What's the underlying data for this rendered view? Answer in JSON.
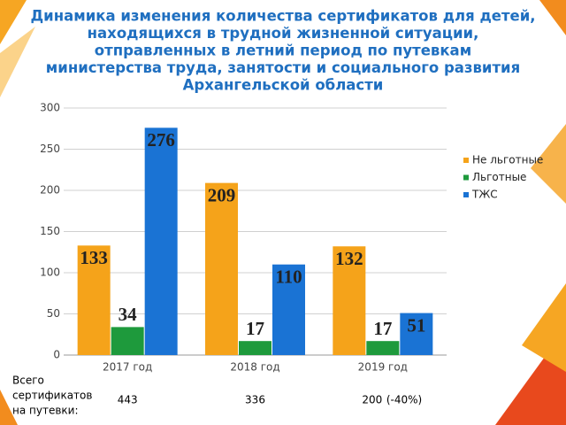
{
  "chart_data": {
    "type": "bar",
    "title": [
      "Динамика изменения количества сертификатов для детей,",
      "находящихся в трудной жизненной ситуации,",
      "отправленных в летний период по путевкам",
      "министерства труда, занятости и социального развития",
      "Архангельской области"
    ],
    "categories": [
      "2017 год",
      "2018 год",
      "2019 год"
    ],
    "series": [
      {
        "name": "Не льготные",
        "color": "#f5a31a",
        "values": [
          133,
          209,
          132
        ]
      },
      {
        "name": "Льготные",
        "color": "#1e9a3c",
        "values": [
          34,
          17,
          17
        ]
      },
      {
        "name": "ТЖС",
        "color": "#1a73d4",
        "values": [
          276,
          110,
          51
        ]
      }
    ],
    "ylim": [
      0,
      300
    ],
    "yticks": [
      0,
      50,
      100,
      150,
      200,
      250,
      300
    ],
    "grid": true,
    "legend": "right",
    "totals_label": [
      "Всего",
      "сертификатов",
      "на путевки:"
    ],
    "totals": [
      443,
      336,
      200
    ],
    "totals_note": "(-40%)"
  }
}
